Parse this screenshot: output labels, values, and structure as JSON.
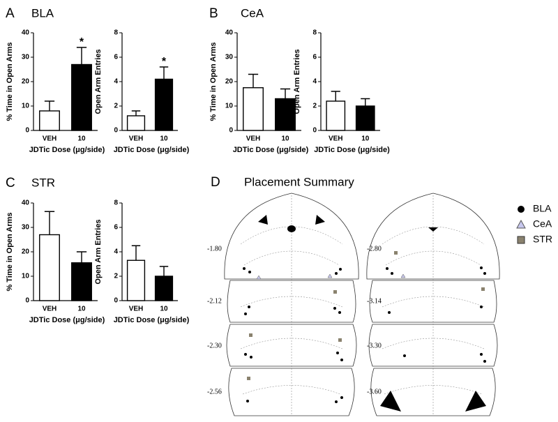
{
  "panels": [
    {
      "letter": "A",
      "title": "BLA"
    },
    {
      "letter": "B",
      "title": "CeA"
    },
    {
      "letter": "C",
      "title": "STR"
    },
    {
      "letter": "D",
      "title": "Placement Summary"
    }
  ],
  "chart_data": [
    {
      "type": "bar",
      "ylabel": "% Time in Open Arms",
      "xlabel": "JDTic Dose (μg/side)",
      "categories": [
        "VEH",
        "10"
      ],
      "values": [
        8,
        27
      ],
      "errors": [
        4,
        7
      ],
      "significance": [
        null,
        "*"
      ],
      "colors": [
        "#ffffff",
        "#000000"
      ],
      "ylim": [
        0,
        40
      ],
      "yticks": [
        0,
        10,
        20,
        30,
        40
      ]
    },
    {
      "type": "bar",
      "ylabel": "Open Arm Entries",
      "xlabel": "JDTic Dose (μg/side)",
      "categories": [
        "VEH",
        "10"
      ],
      "values": [
        1.2,
        4.2
      ],
      "errors": [
        0.4,
        1.0
      ],
      "significance": [
        null,
        "*"
      ],
      "colors": [
        "#ffffff",
        "#000000"
      ],
      "ylim": [
        0,
        8
      ],
      "yticks": [
        0,
        2,
        4,
        6,
        8
      ]
    },
    {
      "type": "bar",
      "ylabel": "% Time in Open Arms",
      "xlabel": "JDTic Dose (μg/side)",
      "categories": [
        "VEH",
        "10"
      ],
      "values": [
        17.5,
        13
      ],
      "errors": [
        5.5,
        4
      ],
      "colors": [
        "#ffffff",
        "#000000"
      ],
      "ylim": [
        0,
        40
      ],
      "yticks": [
        0,
        10,
        20,
        30,
        40
      ]
    },
    {
      "type": "bar",
      "ylabel": "Open Arm Entries",
      "xlabel": "JDTic Dose (μg/side)",
      "categories": [
        "VEH",
        "10"
      ],
      "values": [
        2.4,
        2.0
      ],
      "errors": [
        0.8,
        0.6
      ],
      "colors": [
        "#ffffff",
        "#000000"
      ],
      "ylim": [
        0,
        8
      ],
      "yticks": [
        0,
        2,
        4,
        6,
        8
      ]
    },
    {
      "type": "bar",
      "ylabel": "% Time in Open Arms",
      "xlabel": "JDTic Dose (μg/side)",
      "categories": [
        "VEH",
        "10"
      ],
      "values": [
        27,
        15.5
      ],
      "errors": [
        9.5,
        4.5
      ],
      "colors": [
        "#ffffff",
        "#000000"
      ],
      "ylim": [
        0,
        40
      ],
      "yticks": [
        0,
        10,
        20,
        30,
        40
      ]
    },
    {
      "type": "bar",
      "ylabel": "Open Arm Entries",
      "xlabel": "JDTic Dose (μg/side)",
      "categories": [
        "VEH",
        "10"
      ],
      "values": [
        3.3,
        2.0
      ],
      "errors": [
        1.2,
        0.8
      ],
      "colors": [
        "#ffffff",
        "#000000"
      ],
      "ylim": [
        0,
        8
      ],
      "yticks": [
        0,
        2,
        4,
        6,
        8
      ]
    }
  ],
  "placement_summary": {
    "legend": [
      {
        "name": "BLA",
        "color": "#000000"
      },
      {
        "name": "CeA",
        "color": "#c8c8ee"
      },
      {
        "name": "STR",
        "color": "#8a826e"
      }
    ],
    "bregma_left": [
      "-1.80",
      "-2.12",
      "-2.30",
      "-2.56"
    ],
    "bregma_right": [
      "-2.80",
      "-3.14",
      "-3.30",
      "-3.60"
    ]
  }
}
